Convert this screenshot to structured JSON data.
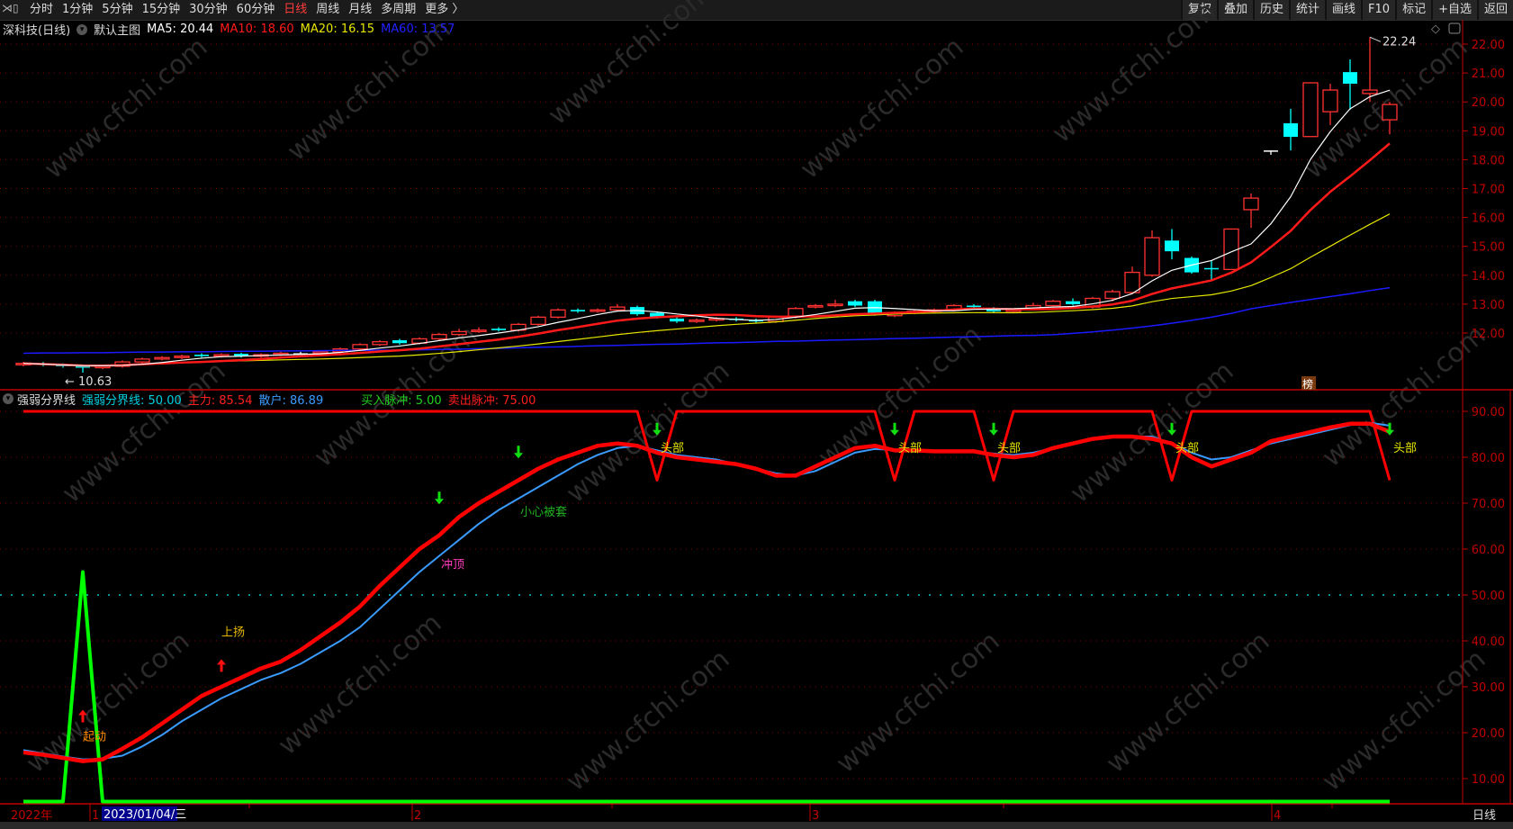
{
  "toolbar": {
    "periods": [
      "分时",
      "1分钟",
      "5分钟",
      "15分钟",
      "30分钟",
      "60分钟",
      "日线",
      "周线",
      "月线",
      "多周期",
      "更多 〉"
    ],
    "active_period": "日线",
    "right_buttons": [
      "复权",
      "叠加",
      "历史",
      "统计",
      "画线",
      "F10",
      "标记",
      "+自选",
      "返回"
    ]
  },
  "header": {
    "stock": "深科技(日线)",
    "template": "默认主图",
    "ma5": "MA5: 20.44",
    "ma10": "MA10: 18.60",
    "ma20": "MA20: 16.15",
    "ma60": "MA60: 13.57"
  },
  "lower_header": {
    "indicator": "强弱分界线",
    "boundary": "强弱分界线: 50.00",
    "main": "主力: 85.54",
    "retail": "散户: 86.89",
    "buy_pulse": "买入脉冲: 5.00",
    "sell_pulse": "卖出脉冲: 75.00"
  },
  "colors": {
    "up": "#ff3232",
    "down": "#00ffff",
    "ma5": "#ffffff",
    "ma10": "#ff1a1a",
    "ma20": "#e6e600",
    "ma60": "#1a1aff",
    "main": "#ff0000",
    "retail": "#3a9bff",
    "boundary": "#00c8c8",
    "buy": "#00ff00",
    "sell": "#ff0000",
    "axis": "#c00000"
  },
  "watermark": "www.cfchi.com",
  "badge": "榜",
  "x_axis": {
    "year_label": "2022年",
    "months": [
      "1",
      "2",
      "3",
      "4"
    ],
    "cursor_date": "2023/01/04/三",
    "period": "日线"
  },
  "chart_data": [
    {
      "type": "candlestick",
      "title": "深科技(日线)",
      "ylim": [
        10.07,
        22.22
      ],
      "yticks": [
        "22.00",
        "21.00",
        "20.00",
        "19.00",
        "18.00",
        "17.00",
        "16.00",
        "15.00",
        "14.00",
        "13.00",
        "12.00"
      ],
      "high_label": "22.24",
      "low_label": "10.63",
      "ohlc": [
        [
          10.9,
          11.0,
          10.85,
          10.95
        ],
        [
          10.95,
          11.0,
          10.85,
          10.9
        ],
        [
          10.9,
          10.95,
          10.8,
          10.85
        ],
        [
          10.85,
          10.9,
          10.63,
          10.8
        ],
        [
          10.8,
          10.9,
          10.75,
          10.85
        ],
        [
          10.85,
          11.05,
          10.8,
          11.0
        ],
        [
          11.0,
          11.15,
          10.95,
          11.1
        ],
        [
          11.1,
          11.2,
          11.05,
          11.15
        ],
        [
          11.15,
          11.25,
          11.1,
          11.2
        ],
        [
          11.25,
          11.3,
          11.15,
          11.2
        ],
        [
          11.2,
          11.3,
          11.15,
          11.25
        ],
        [
          11.28,
          11.32,
          11.15,
          11.2
        ],
        [
          11.2,
          11.3,
          11.15,
          11.25
        ],
        [
          11.25,
          11.35,
          11.2,
          11.3
        ],
        [
          11.3,
          11.35,
          11.25,
          11.3
        ],
        [
          11.3,
          11.4,
          11.25,
          11.35
        ],
        [
          11.35,
          11.5,
          11.3,
          11.45
        ],
        [
          11.45,
          11.65,
          11.4,
          11.6
        ],
        [
          11.6,
          11.75,
          11.55,
          11.7
        ],
        [
          11.75,
          11.8,
          11.6,
          11.65
        ],
        [
          11.65,
          11.85,
          11.6,
          11.8
        ],
        [
          11.8,
          12.0,
          11.75,
          11.95
        ],
        [
          11.95,
          12.15,
          11.9,
          12.05
        ],
        [
          12.05,
          12.2,
          12.0,
          12.1
        ],
        [
          12.15,
          12.2,
          12.05,
          12.1
        ],
        [
          12.1,
          12.35,
          12.05,
          12.3
        ],
        [
          12.3,
          12.6,
          12.25,
          12.55
        ],
        [
          12.55,
          12.85,
          12.5,
          12.8
        ],
        [
          12.8,
          12.85,
          12.7,
          12.75
        ],
        [
          12.75,
          12.85,
          12.7,
          12.8
        ],
        [
          12.8,
          13.0,
          12.75,
          12.9
        ],
        [
          12.9,
          12.95,
          12.6,
          12.65
        ],
        [
          12.7,
          12.75,
          12.5,
          12.55
        ],
        [
          12.5,
          12.55,
          12.35,
          12.4
        ],
        [
          12.4,
          12.5,
          12.35,
          12.45
        ],
        [
          12.45,
          12.55,
          12.4,
          12.5
        ],
        [
          12.5,
          12.55,
          12.4,
          12.45
        ],
        [
          12.45,
          12.5,
          12.35,
          12.4
        ],
        [
          12.4,
          12.6,
          12.35,
          12.55
        ],
        [
          12.55,
          12.9,
          12.5,
          12.85
        ],
        [
          12.9,
          13.0,
          12.85,
          12.95
        ],
        [
          12.95,
          13.15,
          12.9,
          13.0
        ],
        [
          13.1,
          13.15,
          12.9,
          12.95
        ],
        [
          13.1,
          13.15,
          12.6,
          12.65
        ],
        [
          12.6,
          12.75,
          12.55,
          12.7
        ],
        [
          12.7,
          12.8,
          12.65,
          12.75
        ],
        [
          12.75,
          12.85,
          12.7,
          12.8
        ],
        [
          12.8,
          13.0,
          12.75,
          12.95
        ],
        [
          12.95,
          13.0,
          12.85,
          12.9
        ],
        [
          12.85,
          12.9,
          12.7,
          12.75
        ],
        [
          12.75,
          12.85,
          12.7,
          12.8
        ],
        [
          12.85,
          13.05,
          12.8,
          12.95
        ],
        [
          12.95,
          13.15,
          12.9,
          13.1
        ],
        [
          13.1,
          13.2,
          12.95,
          13.0
        ],
        [
          12.9,
          13.25,
          12.85,
          13.2
        ],
        [
          13.2,
          13.5,
          13.1,
          13.43
        ],
        [
          13.4,
          14.3,
          13.35,
          14.1
        ],
        [
          14.0,
          15.55,
          13.95,
          15.3
        ],
        [
          15.2,
          15.6,
          14.55,
          14.83
        ],
        [
          14.6,
          14.65,
          14.05,
          14.1
        ],
        [
          14.25,
          14.5,
          13.8,
          14.22
        ],
        [
          14.2,
          15.6,
          14.2,
          15.6
        ],
        [
          16.27,
          16.83,
          15.64,
          16.67
        ],
        [
          18.32,
          18.32,
          18.17,
          18.32
        ],
        [
          19.26,
          19.76,
          18.32,
          18.79
        ],
        [
          18.8,
          20.66,
          18.8,
          20.66
        ],
        [
          19.66,
          20.63,
          19.2,
          20.41
        ],
        [
          21.03,
          21.47,
          19.73,
          20.63
        ],
        [
          20.29,
          22.24,
          20.0,
          20.41
        ],
        [
          19.38,
          20.0,
          18.88,
          19.91
        ]
      ],
      "ma60": [
        11.3,
        11.31,
        11.31,
        11.32,
        11.32,
        11.33,
        11.34,
        11.34,
        11.35,
        11.35,
        11.36,
        11.37,
        11.37,
        11.38,
        11.38,
        11.39,
        11.4,
        11.4,
        11.41,
        11.41,
        11.42,
        11.43,
        11.44,
        11.46,
        11.47,
        11.49,
        11.51,
        11.52,
        11.54,
        11.56,
        11.57,
        11.59,
        11.61,
        11.62,
        11.64,
        11.66,
        11.67,
        11.69,
        11.71,
        11.72,
        11.74,
        11.76,
        11.77,
        11.79,
        11.81,
        11.82,
        11.84,
        11.86,
        11.87,
        11.89,
        11.91,
        11.92,
        11.94,
        11.99,
        12.04,
        12.1,
        12.17,
        12.25,
        12.34,
        12.44,
        12.55,
        12.68,
        12.84,
        12.95,
        13.06,
        13.16,
        13.26,
        13.36,
        13.47,
        13.57
      ]
    },
    {
      "type": "line",
      "title": "强弱分界线",
      "ylim": [
        5,
        93
      ],
      "yticks": [
        "90.00",
        "80.00",
        "70.00",
        "60.00",
        "50.00",
        "40.00",
        "30.00",
        "20.00",
        "10.00"
      ],
      "boundary": 50,
      "series": [
        {
          "name": "主力",
          "values": [
            15.7,
            15.2,
            14.5,
            13.8,
            14.2,
            16.5,
            19,
            22,
            25,
            28,
            30,
            32,
            34,
            35.5,
            38,
            41,
            44,
            47.5,
            52,
            56,
            60,
            63,
            67,
            70,
            72.5,
            75,
            77.5,
            79.5,
            81,
            82.5,
            83,
            82.5,
            81,
            80,
            79.5,
            79,
            78.5,
            77.5,
            76,
            76,
            78,
            80,
            82,
            82.5,
            81.5,
            81.5,
            81.3,
            81.3,
            81.3,
            80.5,
            80,
            80.5,
            82,
            83,
            84,
            84.5,
            84.5,
            84,
            83,
            80,
            78,
            79.5,
            81,
            83.5,
            84.5,
            85.5,
            86.5,
            87.3,
            87.3,
            85.54
          ]
        },
        {
          "name": "散户",
          "values": [
            16.2,
            15.5,
            14.8,
            14.2,
            14.3,
            15,
            17,
            19.5,
            22.5,
            25,
            27.5,
            29.5,
            31.5,
            33,
            35,
            37.5,
            40,
            43,
            47,
            51,
            55,
            58.5,
            62,
            65.5,
            68.5,
            71,
            73.5,
            76,
            78.5,
            80.5,
            82,
            82.5,
            81.5,
            80.5,
            80,
            79.5,
            78.5,
            77.5,
            76.5,
            76,
            77,
            79,
            81,
            81.8,
            81.6,
            81.4,
            81.2,
            81.2,
            81.2,
            80.8,
            80.5,
            81,
            82,
            83,
            84,
            84.5,
            84.5,
            84.5,
            83,
            81,
            79.5,
            80,
            81.5,
            83,
            84,
            85,
            86,
            87,
            87.5,
            86.89
          ]
        },
        {
          "name": "买入脉冲",
          "values": [
            5,
            5,
            5,
            55,
            5,
            5,
            5,
            5,
            5,
            5,
            5,
            5,
            5,
            5,
            5,
            5,
            5,
            5,
            5,
            5,
            5,
            5,
            5,
            5,
            5,
            5,
            5,
            5,
            5,
            5,
            5,
            5,
            5,
            5,
            5,
            5,
            5,
            5,
            5,
            5,
            5,
            5,
            5,
            5,
            5,
            5,
            5,
            5,
            5,
            5,
            5,
            5,
            5,
            5,
            5,
            5,
            5,
            5,
            5,
            5,
            5,
            5,
            5,
            5,
            5,
            5,
            5,
            5,
            5,
            5
          ]
        },
        {
          "name": "卖出脉冲",
          "values": [
            90,
            90,
            90,
            90,
            90,
            90,
            90,
            90,
            90,
            90,
            90,
            90,
            90,
            90,
            90,
            90,
            90,
            90,
            90,
            90,
            90,
            90,
            90,
            90,
            90,
            90,
            90,
            90,
            90,
            90,
            90,
            90,
            75,
            90,
            90,
            90,
            90,
            90,
            90,
            90,
            90,
            90,
            90,
            90,
            75,
            90,
            90,
            90,
            90,
            75,
            90,
            90,
            90,
            90,
            90,
            90,
            90,
            90,
            75,
            90,
            90,
            90,
            90,
            90,
            90,
            90,
            90,
            90,
            90,
            75
          ]
        }
      ],
      "signals": [
        {
          "kind": "up-arrow",
          "index": 3,
          "value": 25,
          "label": "起动",
          "color": "#ff8c00"
        },
        {
          "kind": "up-arrow",
          "index": 10,
          "value": 36,
          "label": "上扬",
          "color": "#e6b800"
        },
        {
          "kind": "down-arrow",
          "index": 21,
          "value": 67,
          "label": "冲顶",
          "color": "#ff3cbe"
        },
        {
          "kind": "down-arrow",
          "index": 25,
          "value": 77,
          "label": "小心被套",
          "color": "#20b020"
        },
        {
          "kind": "down-arrow",
          "index": 32,
          "value": 82,
          "label": "头部",
          "color": "#e6e600"
        },
        {
          "kind": "down-arrow",
          "index": 44,
          "value": 82,
          "label": "头部",
          "color": "#e6e600"
        },
        {
          "kind": "down-arrow",
          "index": 49,
          "value": 82,
          "label": "头部",
          "color": "#e6e600"
        },
        {
          "kind": "down-arrow",
          "index": 58,
          "value": 82,
          "label": "头部",
          "color": "#e6e600"
        },
        {
          "kind": "down-arrow",
          "index": 69,
          "value": 82,
          "label": "头部",
          "color": "#e6e600"
        }
      ]
    }
  ]
}
